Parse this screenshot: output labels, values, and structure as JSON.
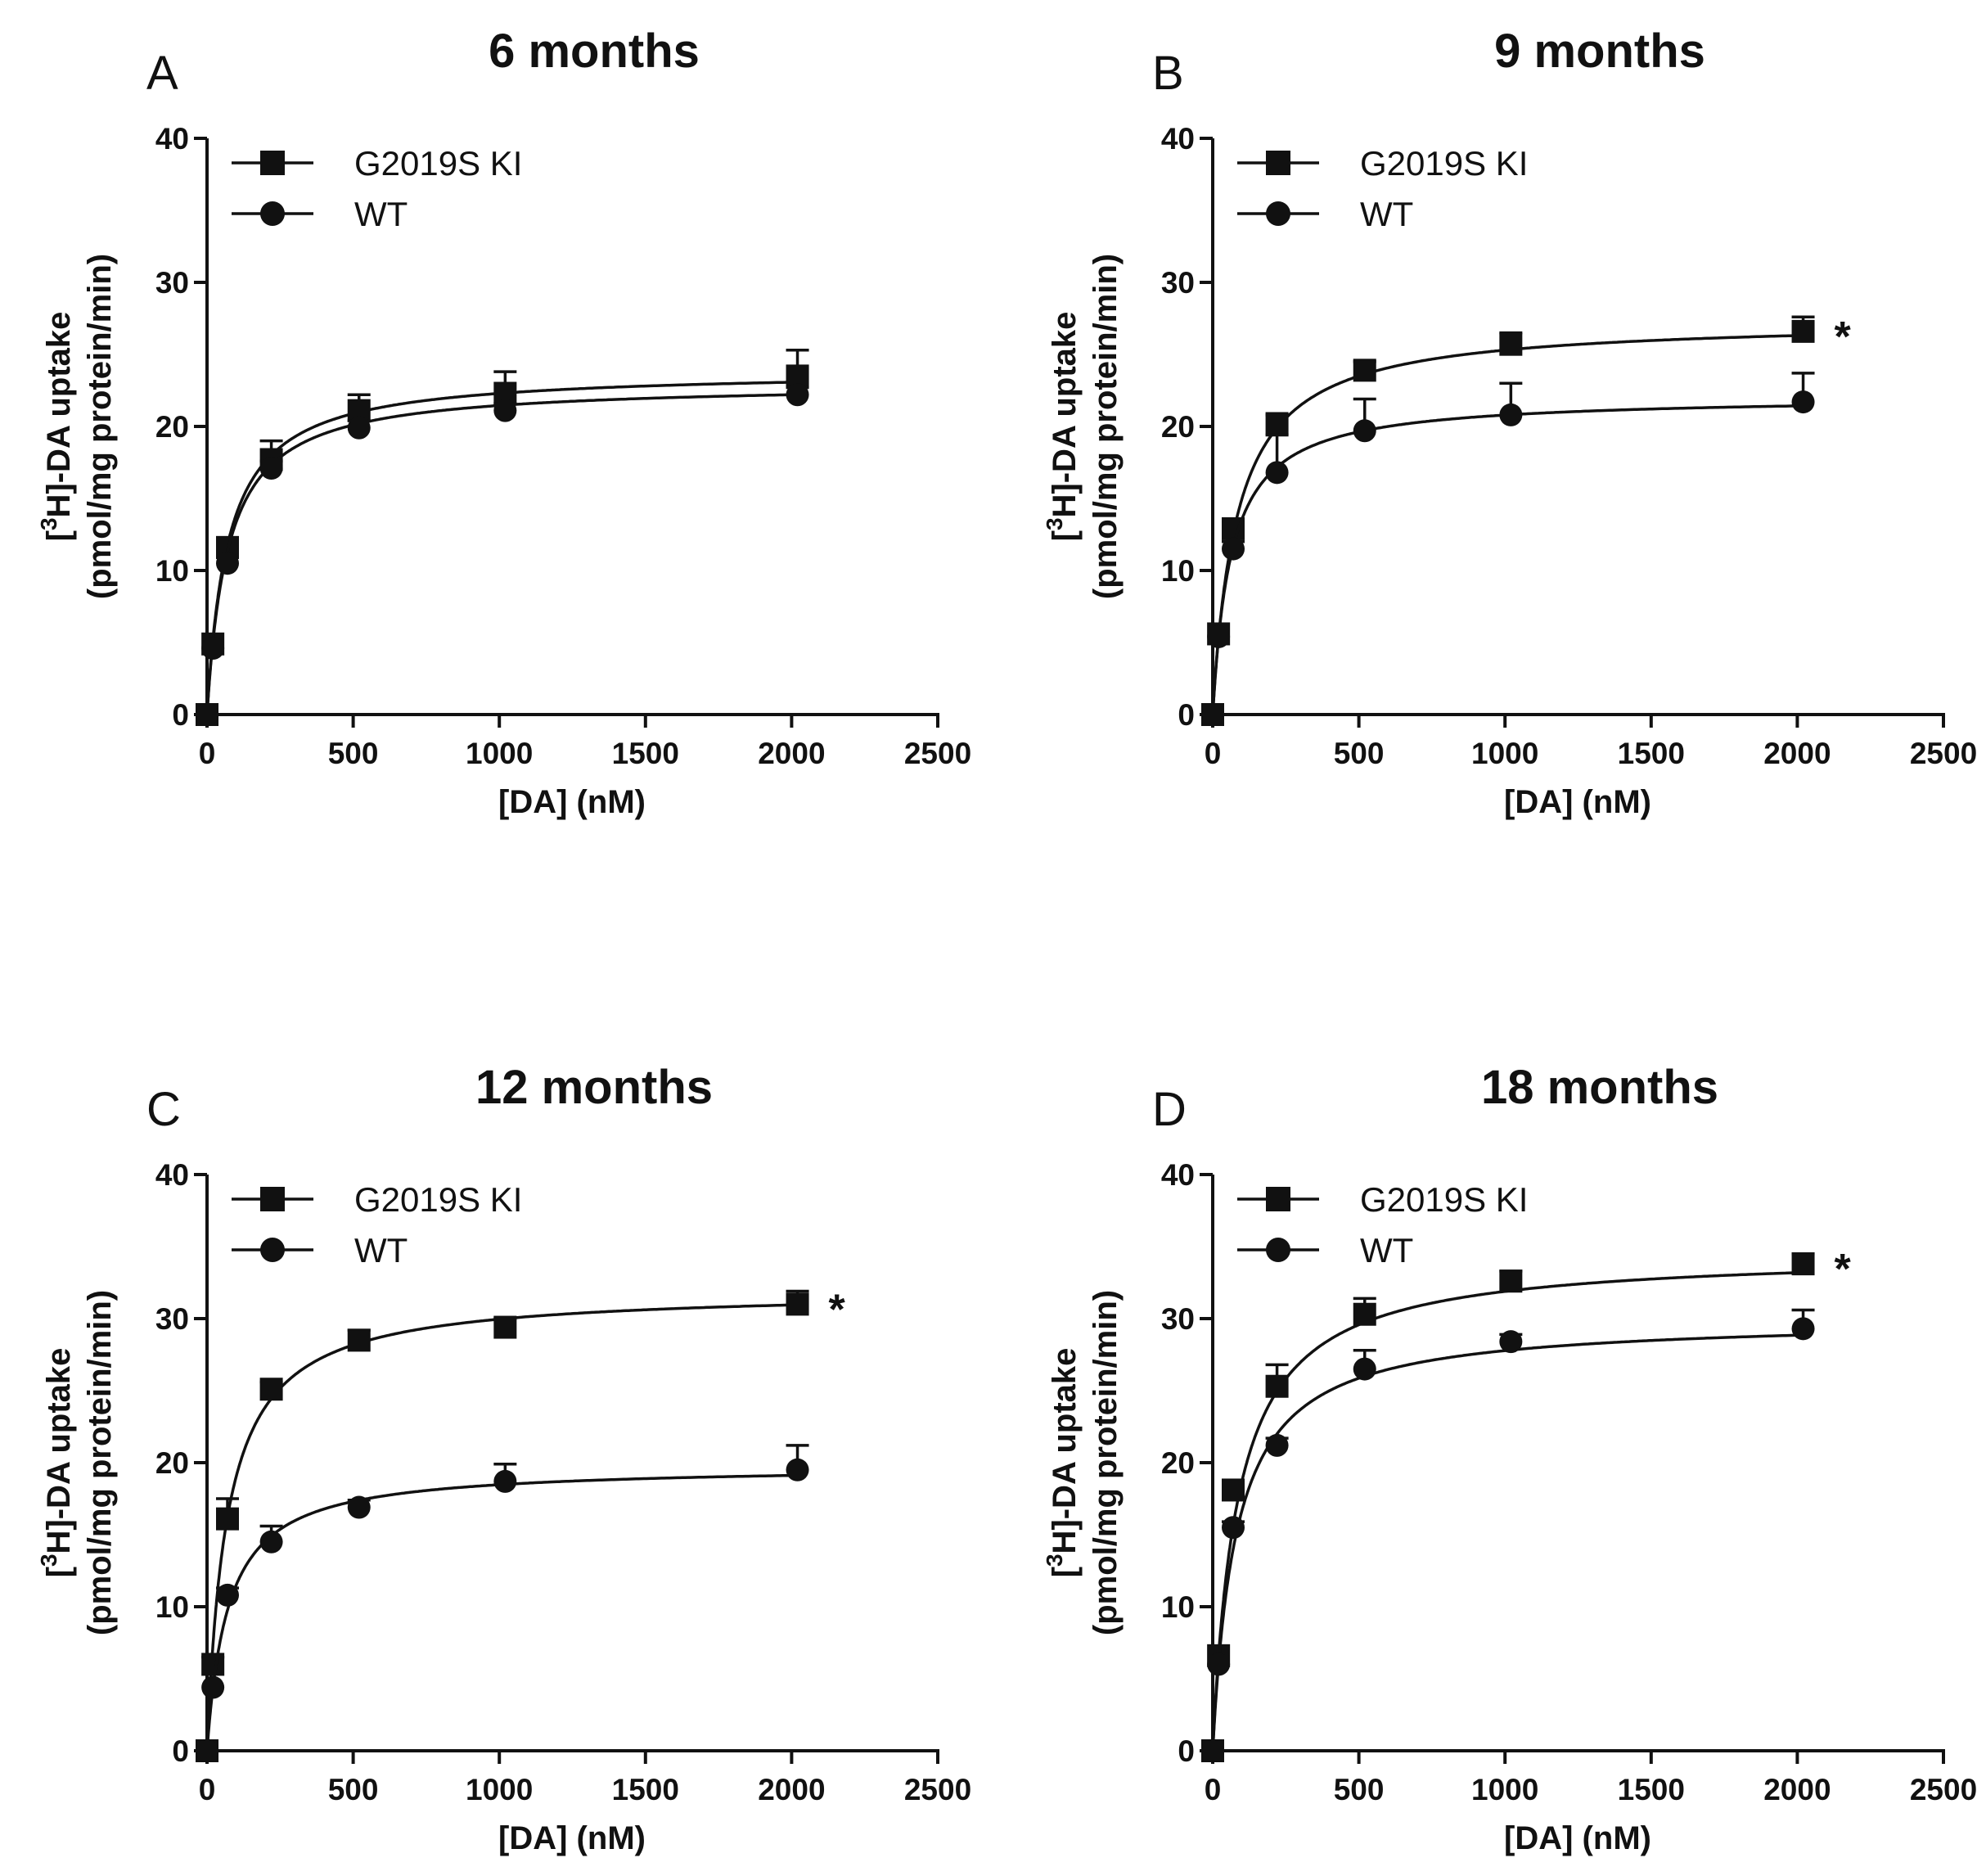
{
  "chart_data": [
    {
      "type": "scatter",
      "panel": "A",
      "title": "6 months",
      "xlabel": "[DA] (nM)",
      "ylabel": [
        "[3H]-DA uptake",
        "(pmol/mg protein/min)"
      ],
      "xlim": [
        0,
        2500
      ],
      "ylim": [
        0,
        40
      ],
      "xticks": [
        0,
        500,
        1000,
        1500,
        2000,
        2500
      ],
      "yticks": [
        0,
        10,
        20,
        30,
        40
      ],
      "x": [
        0,
        20,
        70,
        220,
        520,
        1020,
        2020
      ],
      "legend_position": "top-left",
      "significance": "",
      "series": [
        {
          "name": "G2019S KI",
          "marker": "square",
          "values": [
            0,
            4.9,
            11.6,
            17.7,
            21.1,
            22.3,
            23.5
          ],
          "errors": [
            0,
            0.3,
            0.6,
            1.3,
            1.1,
            1.5,
            1.8
          ],
          "fit": {
            "vmax": 23.9,
            "km": 72
          }
        },
        {
          "name": "WT",
          "marker": "circle",
          "values": [
            0,
            4.6,
            10.5,
            17.1,
            19.9,
            21.1,
            22.2
          ],
          "errors": [
            0,
            0.3,
            0.4,
            0.5,
            0.5,
            0.5,
            0.5
          ],
          "fit": {
            "vmax": 23.0,
            "km": 72
          }
        }
      ]
    },
    {
      "type": "scatter",
      "panel": "B",
      "title": "9 months",
      "xlabel": "[DA] (nM)",
      "ylabel": [
        "[3H]-DA uptake",
        "(pmol/mg protein/min)"
      ],
      "xlim": [
        0,
        2500
      ],
      "ylim": [
        0,
        40
      ],
      "xticks": [
        0,
        500,
        1000,
        1500,
        2000,
        2500
      ],
      "yticks": [
        0,
        10,
        20,
        30,
        40
      ],
      "x": [
        0,
        20,
        70,
        220,
        520,
        1020,
        2020
      ],
      "legend_position": "top-left",
      "significance": "*",
      "series": [
        {
          "name": "G2019S KI",
          "marker": "square",
          "values": [
            0,
            5.6,
            12.9,
            20.2,
            23.9,
            25.7,
            26.6
          ],
          "errors": [
            0,
            0.3,
            0.5,
            0.6,
            0.6,
            0.8,
            1.0
          ],
          "fit": {
            "vmax": 27.4,
            "km": 83
          }
        },
        {
          "name": "WT",
          "marker": "circle",
          "values": [
            0,
            5.4,
            11.5,
            16.8,
            19.7,
            20.8,
            21.7
          ],
          "errors": [
            0,
            0.3,
            0.5,
            2.6,
            2.2,
            2.2,
            2.0
          ],
          "fit": {
            "vmax": 22.1,
            "km": 63
          }
        }
      ]
    },
    {
      "type": "scatter",
      "panel": "C",
      "title": "12 months",
      "xlabel": "[DA] (nM)",
      "ylabel": [
        "[3H]-DA uptake",
        "(pmol/mg protein/min)"
      ],
      "xlim": [
        0,
        2500
      ],
      "ylim": [
        0,
        40
      ],
      "xticks": [
        0,
        500,
        1000,
        1500,
        2000,
        2500
      ],
      "yticks": [
        0,
        10,
        20,
        30,
        40
      ],
      "x": [
        0,
        20,
        70,
        220,
        520,
        1020,
        2020
      ],
      "legend_position": "top-left",
      "significance": "*",
      "series": [
        {
          "name": "G2019S KI",
          "marker": "square",
          "values": [
            0,
            6.0,
            16.1,
            25.1,
            28.5,
            29.4,
            31.0
          ],
          "errors": [
            0,
            0.5,
            1.4,
            0.5,
            0.7,
            0.6,
            0.9
          ],
          "fit": {
            "vmax": 32.0,
            "km": 68
          }
        },
        {
          "name": "WT",
          "marker": "circle",
          "values": [
            0,
            4.4,
            10.8,
            14.5,
            16.9,
            18.7,
            19.5
          ],
          "errors": [
            0,
            0.3,
            0.5,
            1.1,
            0.5,
            1.2,
            1.7
          ],
          "fit": {
            "vmax": 19.8,
            "km": 72
          }
        }
      ]
    },
    {
      "type": "scatter",
      "panel": "D",
      "title": "18 months",
      "xlabel": "[DA] (nM)",
      "ylabel": [
        "[3H]-DA uptake",
        "(pmol/mg protein/min)"
      ],
      "xlim": [
        0,
        2500
      ],
      "ylim": [
        0,
        40
      ],
      "xticks": [
        0,
        500,
        1000,
        1500,
        2000,
        2500
      ],
      "yticks": [
        0,
        10,
        20,
        30,
        40
      ],
      "x": [
        0,
        20,
        70,
        220,
        520,
        1020,
        2020
      ],
      "legend_position": "top-left",
      "significance": "*",
      "series": [
        {
          "name": "G2019S KI",
          "marker": "square",
          "values": [
            0,
            6.6,
            18.1,
            25.3,
            30.3,
            32.6,
            33.8
          ],
          "errors": [
            0,
            0.3,
            0.6,
            1.5,
            1.1,
            0.7,
            0.7
          ],
          "fit": {
            "vmax": 34.6,
            "km": 85
          }
        },
        {
          "name": "WT",
          "marker": "circle",
          "values": [
            0,
            6.0,
            15.5,
            21.2,
            26.5,
            28.4,
            29.3
          ],
          "errors": [
            0,
            0.3,
            0.4,
            0.5,
            1.3,
            0.5,
            1.3
          ],
          "fit": {
            "vmax": 30.0,
            "km": 80
          }
        }
      ]
    }
  ]
}
